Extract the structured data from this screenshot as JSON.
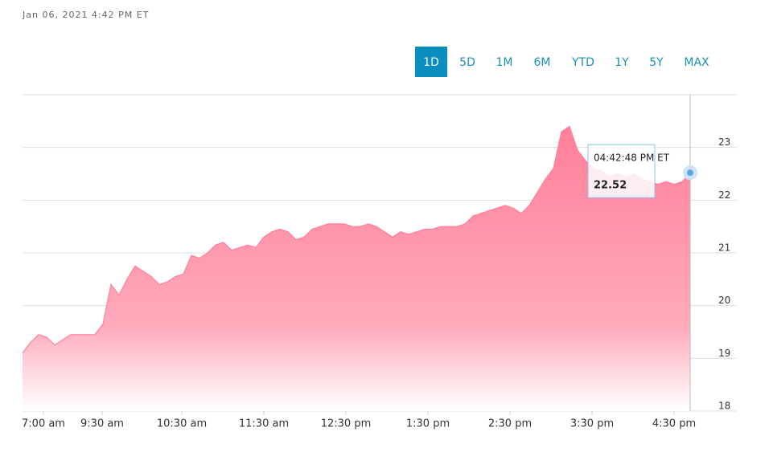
{
  "header": {
    "timestamp": "Jan 06, 2021 4:42 PM ET"
  },
  "range_buttons": {
    "labels": [
      "1D",
      "5D",
      "1M",
      "6M",
      "YTD",
      "1Y",
      "5Y",
      "MAX"
    ],
    "active": "1D"
  },
  "chart_data": {
    "type": "area",
    "color": "#ff7f99",
    "values": [
      19.1,
      19.3,
      19.45,
      19.4,
      19.25,
      19.35,
      19.45,
      19.45,
      19.45,
      19.45,
      19.65,
      20.4,
      20.2,
      20.5,
      20.75,
      20.65,
      20.55,
      20.4,
      20.45,
      20.55,
      20.6,
      20.95,
      20.9,
      21.0,
      21.15,
      21.2,
      21.05,
      21.1,
      21.15,
      21.1,
      21.3,
      21.4,
      21.45,
      21.4,
      21.25,
      21.3,
      21.45,
      21.5,
      21.55,
      21.55,
      21.55,
      21.5,
      21.5,
      21.55,
      21.5,
      21.4,
      21.3,
      21.4,
      21.35,
      21.4,
      21.45,
      21.45,
      21.5,
      21.5,
      21.5,
      21.55,
      21.7,
      21.75,
      21.8,
      21.85,
      21.9,
      21.85,
      21.75,
      21.9,
      22.15,
      22.4,
      22.6,
      23.3,
      23.4,
      22.95,
      22.75,
      22.6,
      22.55,
      22.45,
      22.5,
      22.45,
      22.5,
      22.4,
      22.35,
      22.3,
      22.35,
      22.3,
      22.35,
      22.52
    ],
    "xlim": [
      0,
      88.8
    ],
    "xticks": [
      {
        "value": 2.6,
        "label": "7:00 am"
      },
      {
        "value": 9.9,
        "label": "9:30 am"
      },
      {
        "value": 19.8,
        "label": "10:30 am"
      },
      {
        "value": 30,
        "label": "11:30 am"
      },
      {
        "value": 40.2,
        "label": "12:30 pm"
      },
      {
        "value": 50.4,
        "label": "1:30 pm"
      },
      {
        "value": 60.6,
        "label": "2:30 pm"
      },
      {
        "value": 70.8,
        "label": "3:30 pm"
      },
      {
        "value": 81,
        "label": "4:30 pm"
      }
    ],
    "ylim": [
      18,
      24
    ],
    "yticks": [
      18,
      19,
      20,
      21,
      22,
      23
    ],
    "grid": true,
    "tooltip_time": "04:42:48 PM ET"
  }
}
